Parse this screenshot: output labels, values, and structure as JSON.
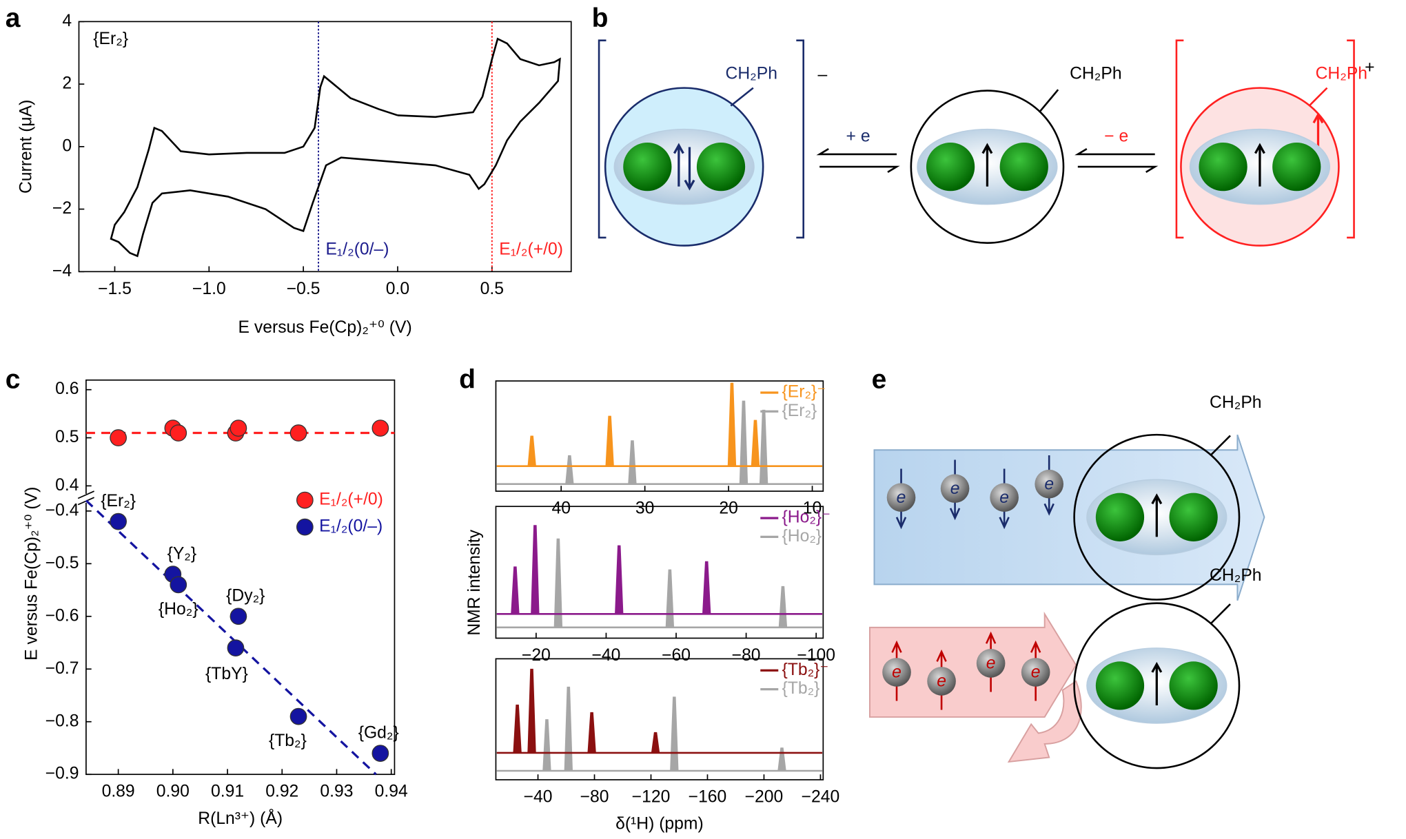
{
  "panel_labels": [
    "a",
    "b",
    "c",
    "d",
    "e"
  ],
  "chart_data": [
    {
      "type": "line",
      "xlabel": "E versus Fe(Cp)₂⁺⁰ (V)",
      "ylabel": "Current (μA)",
      "annotation": "{Er₂}",
      "xlim": [
        -1.69,
        0.92
      ],
      "ylim": [
        -4,
        4
      ],
      "xticks": [
        {
          "value": -1.5,
          "label": "−1.5"
        },
        {
          "value": -1,
          "label": "−1.0"
        },
        {
          "value": -0.5,
          "label": "−0.5"
        },
        {
          "value": 0,
          "label": "0.0"
        },
        0.5
      ],
      "yticks": [
        {
          "value": -4,
          "label": "−4"
        },
        {
          "value": -2,
          "label": "−2"
        },
        0,
        2,
        4
      ],
      "color": "#000000",
      "x": [
        0,
        0.2,
        0.4,
        0.45,
        0.5,
        0.53,
        0.58,
        0.65,
        0.75,
        0.83,
        0.86,
        0.85,
        0.75,
        0.65,
        0.58,
        0.52,
        0.46,
        0.43,
        0.38,
        0.2,
        0,
        -0.3,
        -0.38,
        -0.45,
        -0.5,
        -0.55,
        -0.7,
        -0.9,
        -1.1,
        -1.25,
        -1.3,
        -1.35,
        -1.38,
        -1.42,
        -1.48,
        -1.52,
        -1.5,
        -1.45,
        -1.38,
        -1.32,
        -1.29,
        -1.25,
        -1.15,
        -1.0,
        -0.8,
        -0.6,
        -0.5,
        -0.44,
        -0.41,
        -0.39,
        -0.35,
        -0.25,
        -0.1,
        0
      ],
      "y": [
        1.0,
        0.95,
        1.1,
        1.6,
        2.8,
        3.45,
        3.3,
        2.8,
        2.6,
        2.7,
        2.8,
        2.1,
        1.4,
        0.8,
        0.2,
        -0.6,
        -1.2,
        -1.35,
        -0.9,
        -0.6,
        -0.5,
        -0.35,
        -0.6,
        -1.8,
        -2.7,
        -2.6,
        -2.0,
        -1.6,
        -1.4,
        -1.5,
        -1.8,
        -2.8,
        -3.5,
        -3.4,
        -3.05,
        -2.95,
        -2.5,
        -2.1,
        -1.3,
        -0.1,
        0.6,
        0.5,
        -0.15,
        -0.25,
        -0.2,
        -0.2,
        0.0,
        0.6,
        1.9,
        2.25,
        2.05,
        1.55,
        1.2,
        1.0
      ],
      "markers": [
        {
          "x": -0.42,
          "color": "#1a1a8c",
          "label": "E₁/₂(0/–)"
        },
        {
          "x": 0.5,
          "color": "#ff2020",
          "label": "E₁/₂(+/0)"
        }
      ]
    },
    {
      "type": "scatter",
      "xlabel": "R(Ln³⁺) (Å)",
      "ylabel": "E versus Fe(Cp)₂⁺⁰ (V)",
      "xlim": [
        0.8841,
        0.9406
      ],
      "xticks": [
        0.89,
        {
          "value": 0.9,
          "label": "0.90"
        },
        0.91,
        0.92,
        0.93,
        0.94
      ],
      "y_segments": [
        {
          "ylim": [
            0.374,
            0.62
          ],
          "yticks": [
            0.4,
            0.5,
            0.6
          ]
        },
        {
          "ylim": [
            -0.9,
            -0.376
          ],
          "yticks": [
            {
              "value": -0.4,
              "label": "−0.4"
            },
            {
              "value": -0.5,
              "label": "−0.5"
            },
            {
              "value": -0.6,
              "label": "−0.6"
            },
            {
              "value": -0.7,
              "label": "−0.7"
            },
            {
              "value": -0.8,
              "label": "−0.8"
            },
            {
              "value": -0.9,
              "label": "−0.9"
            }
          ]
        }
      ],
      "series": [
        {
          "name": "E₁/₂(+/0)",
          "color": "#ff2020",
          "x": [
            0.89,
            0.9,
            0.901,
            0.9115,
            0.912,
            0.923,
            0.938
          ],
          "y": [
            0.5,
            0.52,
            0.51,
            0.51,
            0.52,
            0.51,
            0.52
          ],
          "fit": {
            "x": [
              0.8841,
              0.9406
            ],
            "y": [
              0.51,
              0.51
            ]
          }
        },
        {
          "name": "E₁/₂(0/–)",
          "color": "#1414a0",
          "x": [
            0.89,
            0.9,
            0.901,
            0.912,
            0.9115,
            0.923,
            0.938
          ],
          "y": [
            -0.42,
            -0.52,
            -0.54,
            -0.6,
            -0.66,
            -0.79,
            -0.86
          ],
          "point_labels": [
            "{Er₂}",
            "{Y₂}",
            "{Ho₂}",
            "{Dy₂}",
            "{TbY}",
            "{Tb₂}",
            "{Gd₂}"
          ],
          "fit": {
            "x": [
              0.8841,
              0.9372
            ],
            "y": [
              -0.38,
              -0.9
            ]
          }
        }
      ]
    },
    {
      "type": "spectrum",
      "ylabel": "NMR intensity",
      "xlim": [
        47.8,
        8.7
      ],
      "xticks": [
        40,
        30,
        20,
        10
      ],
      "series": [
        {
          "name": "{Er₂}⁻",
          "color": "#f7941d",
          "peaks": [
            43.5,
            34.2,
            19.6,
            16.8
          ],
          "heights": [
            0.36,
            0.6,
            1.0,
            0.55
          ]
        },
        {
          "name": "{Er₂}",
          "color": "#a6a6a6",
          "peaks": [
            39,
            31.5,
            18.2,
            15.8
          ],
          "heights": [
            0.34,
            0.52,
            1.0,
            0.89
          ]
        }
      ]
    },
    {
      "type": "spectrum",
      "xlim": [
        -8.5,
        -102
      ],
      "xticks": [
        {
          "value": -20,
          "label": "−20"
        },
        {
          "value": -40,
          "label": "−40"
        },
        {
          "value": -60,
          "label": "−60"
        },
        {
          "value": -80,
          "label": "−80"
        },
        {
          "value": -100,
          "label": "−100"
        }
      ],
      "series": [
        {
          "name": "{Ho₂}⁻",
          "color": "#8b1a8b",
          "peaks": [
            -14,
            -19.7,
            -43.7,
            -68.7
          ],
          "heights": [
            0.53,
            1.0,
            0.77,
            0.59
          ]
        },
        {
          "name": "{Ho₂}",
          "color": "#a6a6a6",
          "peaks": [
            -26.3,
            -58.2,
            -90.5
          ],
          "heights": [
            1.0,
            0.65,
            0.46
          ]
        }
      ]
    },
    {
      "type": "spectrum",
      "xlabel": "δ(¹H) (ppm)",
      "xlim": [
        -10.2,
        -241.9
      ],
      "xticks": [
        {
          "value": -40,
          "label": "−40"
        },
        {
          "value": -80,
          "label": "−80"
        },
        {
          "value": -120,
          "label": "−120"
        },
        {
          "value": -160,
          "label": "−160"
        },
        {
          "value": -200,
          "label": "−200"
        },
        {
          "value": -240,
          "label": "−240"
        }
      ],
      "series": [
        {
          "name": "{Tb₂}⁻",
          "color": "#8b1010",
          "peaks": [
            -25.4,
            -35.6,
            -78.1,
            -123.2
          ],
          "heights": [
            0.57,
            1.0,
            0.48,
            0.24
          ]
        },
        {
          "name": "{Tb₂}",
          "color": "#a6a6a6",
          "peaks": [
            -46.3,
            -61.6,
            -136.5,
            -212.7
          ],
          "heights": [
            0.61,
            1.0,
            0.88,
            0.27
          ]
        }
      ]
    }
  ],
  "diagrams": {
    "b": {
      "left_group": "CH₂Ph",
      "left_charge": "–",
      "middle_group": "CH₂Ph",
      "right_group": "CH₂Ph",
      "right_charge": "+",
      "reduction": "+ e",
      "oxidation": "− e"
    },
    "e": {
      "top_group": "CH₂Ph",
      "bottom_group": "CH₂Ph",
      "electron": "e"
    }
  }
}
